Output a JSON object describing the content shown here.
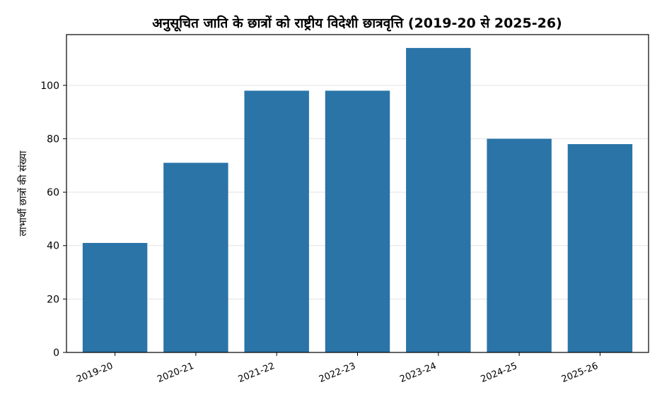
{
  "chart_data": {
    "type": "bar",
    "title": "अनुसूचित जाति के छात्रों को राष्ट्रीय विदेशी छात्रवृत्ति (2019-20 से 2025-26)",
    "xlabel": "",
    "ylabel": "लाभार्थी छात्रों की संख्या",
    "categories": [
      "2019-20",
      "2020-21",
      "2021-22",
      "2022-23",
      "2023-24",
      "2024-25",
      "2025-26"
    ],
    "values": [
      41,
      71,
      98,
      98,
      114,
      80,
      78
    ],
    "ylim": [
      0,
      119
    ],
    "yticks": [
      0,
      20,
      40,
      60,
      80,
      100
    ],
    "grid": "horizontal",
    "bar_color": "#2a74a8"
  }
}
